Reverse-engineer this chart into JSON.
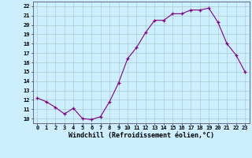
{
  "x": [
    0,
    1,
    2,
    3,
    4,
    5,
    6,
    7,
    8,
    9,
    10,
    11,
    12,
    13,
    14,
    15,
    16,
    17,
    18,
    19,
    20,
    21,
    22,
    23
  ],
  "y": [
    12.2,
    11.8,
    11.2,
    10.5,
    11.1,
    10.0,
    9.9,
    10.2,
    11.8,
    13.8,
    16.4,
    17.6,
    19.2,
    20.5,
    20.5,
    21.2,
    21.2,
    21.6,
    21.6,
    21.8,
    20.3,
    18.0,
    16.8,
    15.0
  ],
  "ylim": [
    9.5,
    22.5
  ],
  "xlim": [
    -0.5,
    23.5
  ],
  "yticks": [
    10,
    11,
    12,
    13,
    14,
    15,
    16,
    17,
    18,
    19,
    20,
    21,
    22
  ],
  "xticks": [
    0,
    1,
    2,
    3,
    4,
    5,
    6,
    7,
    8,
    9,
    10,
    11,
    12,
    13,
    14,
    15,
    16,
    17,
    18,
    19,
    20,
    21,
    22,
    23
  ],
  "xlabel": "Windchill (Refroidissement éolien,°C)",
  "line_color": "#800080",
  "marker": "+",
  "bg_color": "#cceeff",
  "grid_color": "#aacccc",
  "tick_label_fontsize": 5.0,
  "xlabel_fontsize": 6.0
}
